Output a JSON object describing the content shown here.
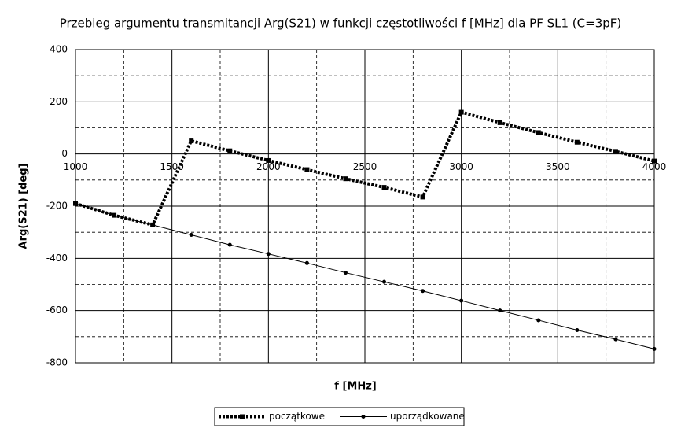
{
  "chart_data": {
    "type": "line",
    "title": "Przebieg argumentu transmitancji Arg(S21) w funkcji częstotliwości f [MHz] dla PF SL1 (C=3pF)",
    "x_label": "f [MHz]",
    "y_label": "Arg(S21) [deg]",
    "x": [
      1000,
      1200,
      1400,
      1600,
      1800,
      2000,
      2200,
      2400,
      2600,
      2800,
      3000,
      3200,
      3400,
      3600,
      3800,
      4000
    ],
    "series": [
      {
        "name": "początkowe",
        "color": "#000000",
        "style": "dotted",
        "marker": "square",
        "values": [
          -190,
          -235,
          -272,
          50,
          12,
          -25,
          -60,
          -95,
          -128,
          -165,
          160,
          120,
          82,
          45,
          10,
          -27
        ]
      },
      {
        "name": "uporządkowane",
        "color": "#000000",
        "style": "solid",
        "marker": "circle",
        "values": [
          -190,
          -235,
          -272,
          -310,
          -348,
          -383,
          -418,
          -455,
          -490,
          -525,
          -562,
          -600,
          -637,
          -675,
          -710,
          -747
        ]
      }
    ],
    "xlim": [
      1000,
      4000
    ],
    "xticks": [
      1000,
      1500,
      2000,
      2500,
      3000,
      3500,
      4000
    ],
    "ylim": [
      -800,
      400
    ],
    "yticks": [
      -800,
      -600,
      -400,
      -200,
      0,
      200,
      400
    ],
    "grid": true,
    "legend": "bottom"
  }
}
